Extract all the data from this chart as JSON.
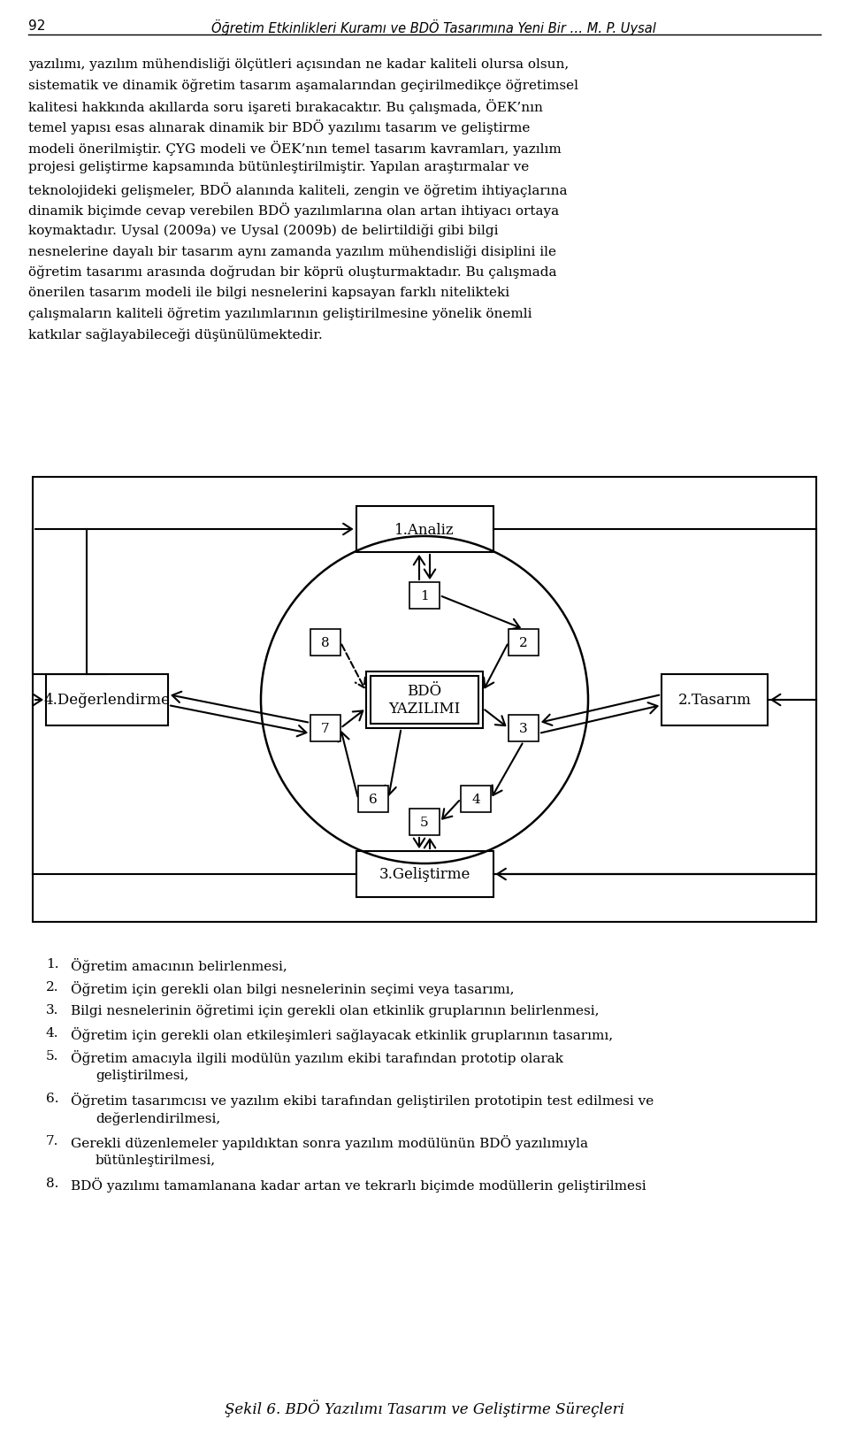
{
  "page_number": "92",
  "header_text": "Öğretim Etkinlikleri Kuramı ve BDÖ Tasarımına Yeni Bir … M. P. Uysal",
  "para_lines": [
    "yazılımı, yazılım mühendisliği ölçütleri açısından ne kadar kaliteli olursa olsun,",
    "sistematik ve dinamik öğretim tasarım aşamalarından geçirilmedikçe öğretimsel",
    "kalitesi hakkında akıllarda soru işareti bırakacaktır. Bu çalışmada, ÖEK’nın",
    "temel yapısı esas alınarak dinamik bir BDÖ yazılımı tasarım ve geliştirme",
    "modeli önerilmiştir. ÇYG modeli ve ÖEK’nın temel tasarım kavramları, yazılım",
    "projesi geliştirme kapsamında bütünleştirilmiştir. Yapılan araştırmalar ve",
    "teknolojideki gelişmeler, BDÖ alanında kaliteli, zengin ve öğretim ihtiyaçlarına",
    "dinamik biçimde cevap verebilen BDÖ yazılımlarına olan artan ihtiyacı ortaya",
    "koymaktadır. Uysal (2009a) ve Uysal (2009b) de belirtildiği gibi bilgi",
    "nesnelerine dayalı bir tasarım aynı zamanda yazılım mühendisliği disiplini ile",
    "öğretim tasarımı arasında doğrudan bir köprü oluşturmaktadır. Bu çalışmada",
    "önerilen tasarım modeli ile bilgi nesnelerini kapsayan farklı nitelikteki",
    "çalışmaların kaliteli öğretim yazılımlarının geliştirilmesine yönelik önemli",
    "katkılar sağlayabileceği düşünülümektedir."
  ],
  "list_items": [
    "Öğretim amacının belirlenmesi,",
    "Öğretim için gerekli olan bilgi nesnelerinin seçimi veya tasarımı,",
    "Bilgi nesnelerinin öğretimi için gerekli olan etkinlik gruplarının belirlenmesi,",
    "Öğretim için gerekli olan etkileşimleri sağlayacak etkinlik gruplarının tasarımı,",
    "Öğretim amacıyla ilgili modülün yazılım ekibi tarafından prototip olarak\n    geliştirilmesi,",
    "Öğretim tasarımcısı ve yazılım ekibi tarafından geliştirilen prototipin test edilmesi ve\n    değerlendirilmesi,",
    "Gerekli düzenlemeler yapıldıktan sonra yazılım modülünün BDÖ yazılımıyla\n    bütünleştirilmesi,",
    "BDÖ yazılımı tamamlanana kadar artan ve tekrarlı biçimde modüllerin geliştirilmesi"
  ],
  "caption": "Şekil 6. BDÖ Yazılımı Tasarım ve Geliştirme Süreçleri",
  "node_top": "1.Analiz",
  "node_left": "4.Değerlendirme",
  "node_right": "2.Tasarım",
  "node_bottom": "3.Geliştirme",
  "node_center_line1": "BDÖ",
  "node_center_line2": "YAZILIMI",
  "bg_color": "#ffffff"
}
